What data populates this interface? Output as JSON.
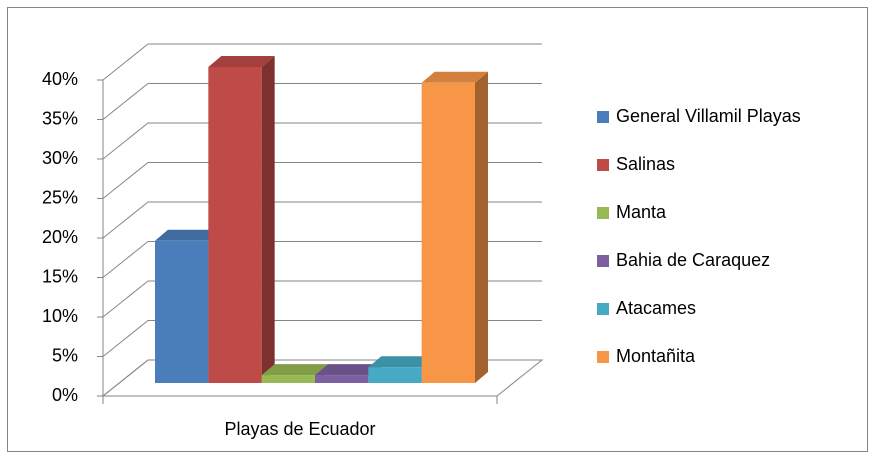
{
  "chart_data": {
    "type": "bar3d",
    "categories": [
      "Playas de Ecuador"
    ],
    "series": [
      {
        "name": "General Villamil Playas",
        "color": "#4a7ebb",
        "values": [
          18
        ]
      },
      {
        "name": "Salinas",
        "color": "#be4b48",
        "values": [
          40
        ]
      },
      {
        "name": "Manta",
        "color": "#98b954",
        "values": [
          1
        ]
      },
      {
        "name": "Bahia de Caraquez",
        "color": "#7d60a0",
        "values": [
          1
        ]
      },
      {
        "name": "Atacames",
        "color": "#46aac5",
        "values": [
          2
        ]
      },
      {
        "name": "Montañita",
        "color": "#f79646",
        "values": [
          38
        ]
      }
    ],
    "ylim": [
      0,
      40
    ],
    "yticks": [
      {
        "value": 0,
        "label": "0%"
      },
      {
        "value": 5,
        "label": "5%"
      },
      {
        "value": 10,
        "label": "10%"
      },
      {
        "value": 15,
        "label": "15%"
      },
      {
        "value": 20,
        "label": "20%"
      },
      {
        "value": 25,
        "label": "25%"
      },
      {
        "value": 30,
        "label": "30%"
      },
      {
        "value": 35,
        "label": "35%"
      },
      {
        "value": 40,
        "label": "40%"
      }
    ],
    "grid": true,
    "legend": "right"
  }
}
